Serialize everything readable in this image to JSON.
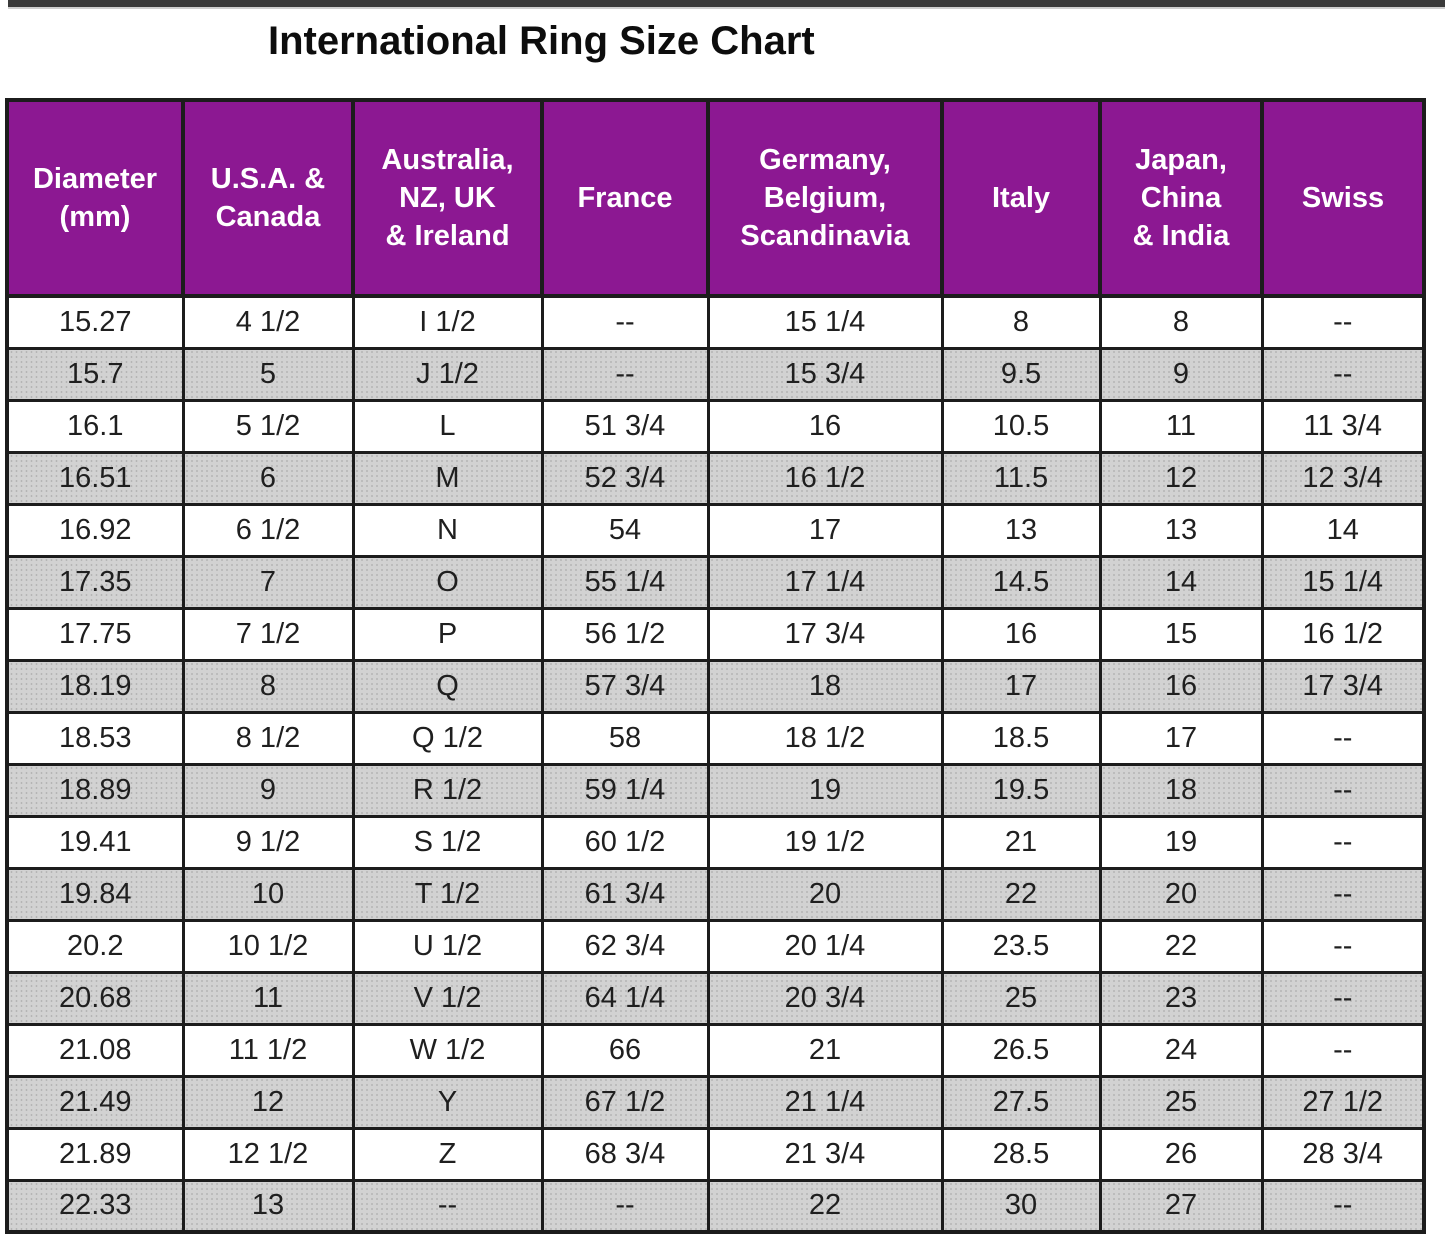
{
  "page": {
    "title": "International Ring Size Chart"
  },
  "colors": {
    "header_bg": "#8c1892",
    "header_text": "#ffffff",
    "stripe_bg": "#d2d2d2",
    "border": "#1c1c1c",
    "body_text": "#1f1f1f",
    "top_bar": "#3a3a3a"
  },
  "chart_data": {
    "type": "table",
    "title": "International Ring Size Chart",
    "columns": [
      "Diameter (mm)",
      "U.S.A. & Canada",
      "Australia, NZ, UK & Ireland",
      "France",
      "Germany, Belgium, Scandinavia",
      "Italy",
      "Japan, China & India",
      "Swiss"
    ],
    "header_display": [
      "Diameter\n(mm)",
      "U.S.A. &\nCanada",
      "Australia,\nNZ, UK\n& Ireland",
      "France",
      "Germany,\nBelgium,\nScandinavia",
      "Italy",
      "Japan,\nChina\n& India",
      "Swiss"
    ],
    "rows": [
      [
        "15.27",
        "4 1/2",
        "I 1/2",
        "--",
        "15 1/4",
        "8",
        "8",
        "--"
      ],
      [
        "15.7",
        "5",
        "J 1/2",
        "--",
        "15 3/4",
        "9.5",
        "9",
        "--"
      ],
      [
        "16.1",
        "5 1/2",
        "L",
        "51 3/4",
        "16",
        "10.5",
        "11",
        "11 3/4"
      ],
      [
        "16.51",
        "6",
        "M",
        "52 3/4",
        "16 1/2",
        "11.5",
        "12",
        "12 3/4"
      ],
      [
        "16.92",
        "6 1/2",
        "N",
        "54",
        "17",
        "13",
        "13",
        "14"
      ],
      [
        "17.35",
        "7",
        "O",
        "55 1/4",
        "17 1/4",
        "14.5",
        "14",
        "15 1/4"
      ],
      [
        "17.75",
        "7 1/2",
        "P",
        "56 1/2",
        "17 3/4",
        "16",
        "15",
        "16 1/2"
      ],
      [
        "18.19",
        "8",
        "Q",
        "57 3/4",
        "18",
        "17",
        "16",
        "17 3/4"
      ],
      [
        "18.53",
        "8 1/2",
        "Q 1/2",
        "58",
        "18 1/2",
        "18.5",
        "17",
        "--"
      ],
      [
        "18.89",
        "9",
        "R 1/2",
        "59 1/4",
        "19",
        "19.5",
        "18",
        "--"
      ],
      [
        "19.41",
        "9 1/2",
        "S 1/2",
        "60 1/2",
        "19 1/2",
        "21",
        "19",
        "--"
      ],
      [
        "19.84",
        "10",
        "T 1/2",
        "61 3/4",
        "20",
        "22",
        "20",
        "--"
      ],
      [
        "20.2",
        "10 1/2",
        "U 1/2",
        "62 3/4",
        "20 1/4",
        "23.5",
        "22",
        "--"
      ],
      [
        "20.68",
        "11",
        "V 1/2",
        "64 1/4",
        "20 3/4",
        "25",
        "23",
        "--"
      ],
      [
        "21.08",
        "11 1/2",
        "W 1/2",
        "66",
        "21",
        "26.5",
        "24",
        "--"
      ],
      [
        "21.49",
        "12",
        "Y",
        "67 1/2",
        "21 1/4",
        "27.5",
        "25",
        "27 1/2"
      ],
      [
        "21.89",
        "12 1/2",
        "Z",
        "68 3/4",
        "21 3/4",
        "28.5",
        "26",
        "28 3/4"
      ],
      [
        "22.33",
        "13",
        "--",
        "--",
        "22",
        "30",
        "27",
        "--"
      ]
    ]
  }
}
